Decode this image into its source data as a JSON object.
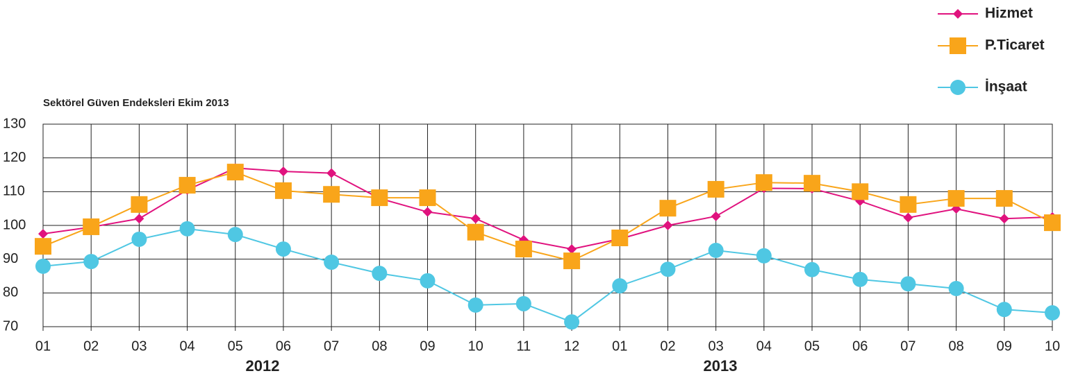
{
  "chart_data": {
    "type": "line",
    "title": "Sektörel Güven Endeksleri Ekim 2013",
    "categories": [
      "01",
      "02",
      "03",
      "04",
      "05",
      "06",
      "07",
      "08",
      "09",
      "10",
      "11",
      "12",
      "01",
      "02",
      "03",
      "04",
      "05",
      "06",
      "07",
      "08",
      "09",
      "10"
    ],
    "annotations": [
      "2012",
      "2013"
    ],
    "series": [
      {
        "name": "Hizmet",
        "color": "#e0127e",
        "marker": "diamond",
        "values": [
          97.5,
          99.5,
          102,
          110.5,
          117,
          116,
          115.5,
          108,
          104,
          102,
          95.7,
          93,
          96,
          100,
          102.7,
          111,
          110.9,
          107.2,
          102.3,
          104.9,
          102,
          102.5
        ]
      },
      {
        "name": "P.Ticaret",
        "color": "#f9a51a",
        "marker": "square",
        "values": [
          93.8,
          99.6,
          106.2,
          111.9,
          115.8,
          110.3,
          109.2,
          108.2,
          108.2,
          98,
          93,
          89.5,
          96.3,
          105.1,
          110.7,
          112.7,
          112.5,
          110,
          106.2,
          108,
          108,
          100.8
        ]
      },
      {
        "name": "İnşaat",
        "color": "#4fc7e3",
        "marker": "circle",
        "values": [
          87.9,
          89.3,
          95.9,
          99,
          97.3,
          93,
          89.1,
          85.8,
          83.6,
          76.4,
          76.8,
          71.4,
          82.1,
          87,
          92.6,
          91,
          86.9,
          84,
          82.7,
          81.3,
          75.1,
          74.1
        ]
      }
    ],
    "ylim": [
      70,
      130
    ],
    "yticks": [
      70,
      80,
      90,
      100,
      110,
      120,
      130
    ],
    "grid": true
  }
}
